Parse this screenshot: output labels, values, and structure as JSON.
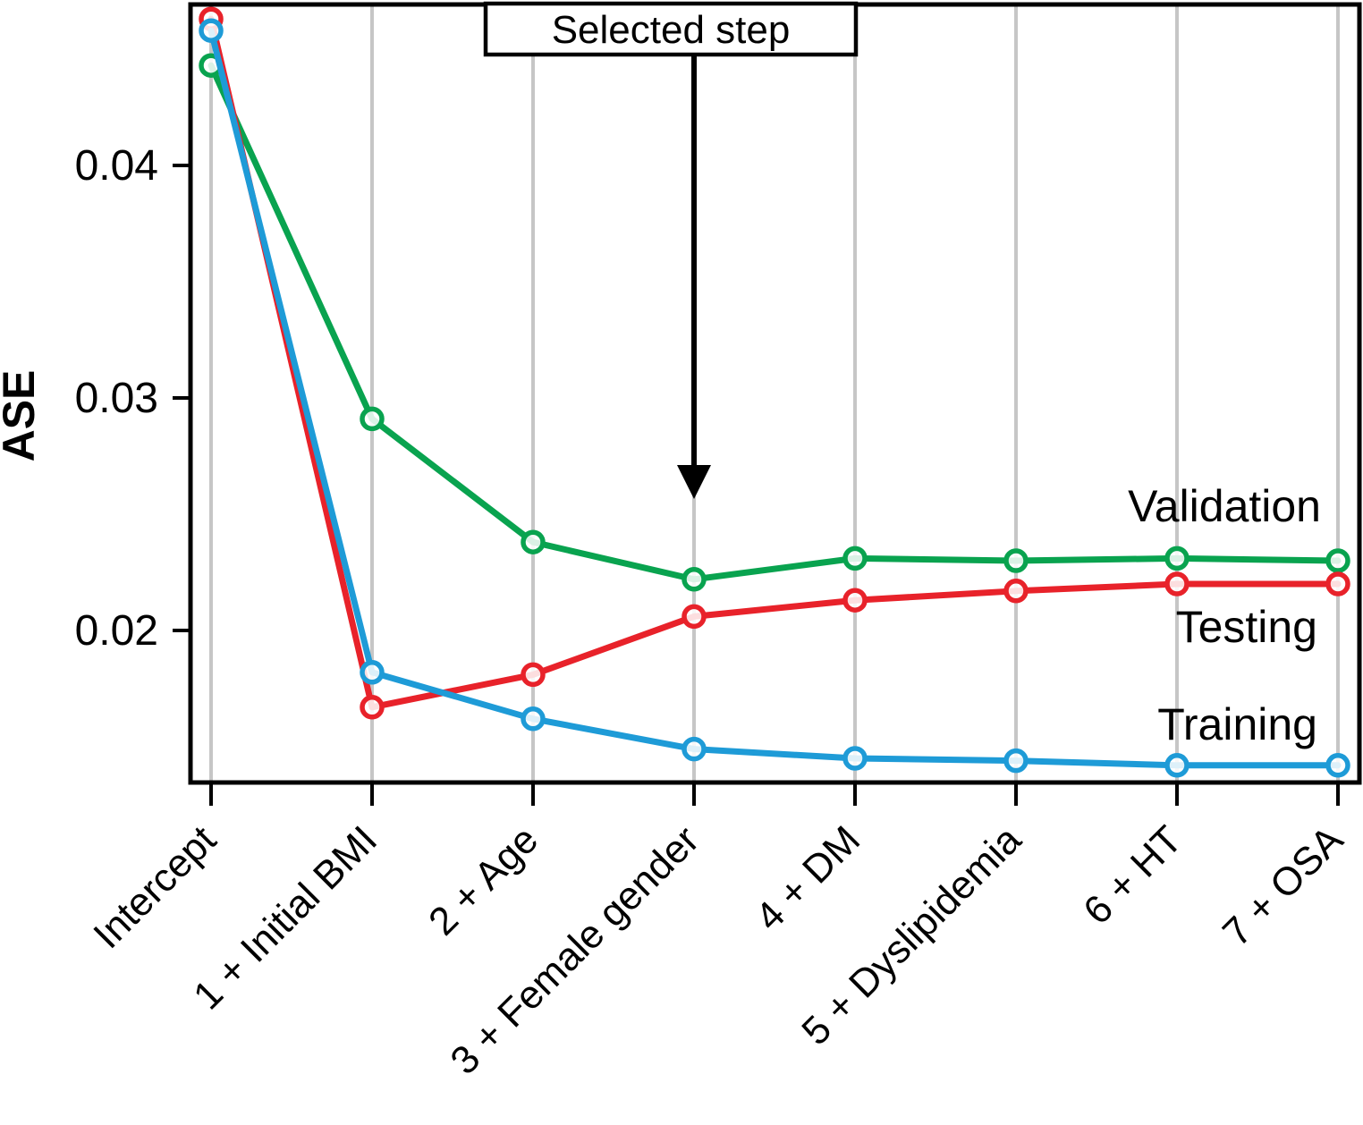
{
  "chart_data": {
    "type": "line",
    "title": "",
    "xlabel": "",
    "ylabel": "ASE",
    "categories": [
      "Intercept",
      "1 + Initial BMI",
      "2 + Age",
      "3 + Female gender",
      "4 + DM",
      "5 + Dyslipidemia",
      "6 + HT",
      "7 + OSA"
    ],
    "series": [
      {
        "name": "Validation",
        "color": "#09A34F",
        "values": [
          0.0443,
          0.0291,
          0.0238,
          0.0222,
          0.0231,
          0.023,
          0.0231,
          0.023
        ]
      },
      {
        "name": "Testing",
        "color": "#E8222A",
        "values": [
          0.0463,
          0.0167,
          0.0181,
          0.0206,
          0.0213,
          0.0217,
          0.022,
          0.022
        ]
      },
      {
        "name": "Training",
        "color": "#1E9BD7",
        "values": [
          0.0458,
          0.0182,
          0.0162,
          0.0149,
          0.0145,
          0.0144,
          0.0142,
          0.0142
        ]
      }
    ],
    "yticks": [
      0.02,
      0.03,
      0.04
    ],
    "ytick_labels": [
      "0.02",
      "0.03",
      "0.04"
    ],
    "ylim": [
      0.013462,
      0.046923
    ],
    "grid": "vertical",
    "gridline_color": "#C6C6C6",
    "frame_color": "#000000",
    "x_tick_rotation": 45,
    "legend_position": "inline-right",
    "legend_labels": [
      "Validation",
      "Testing",
      "Training"
    ],
    "annotation": {
      "label": "Selected step",
      "target_category": "3 + Female gender",
      "target_index": 3
    }
  }
}
